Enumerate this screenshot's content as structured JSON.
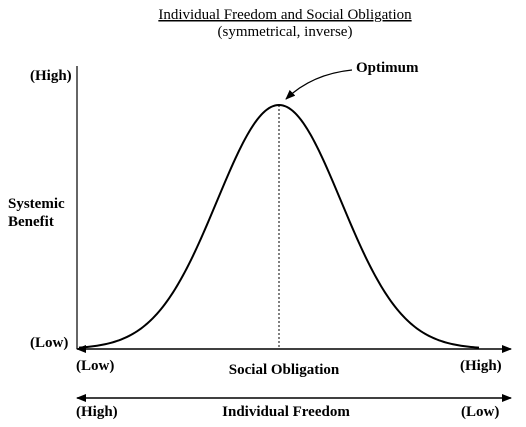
{
  "title": "Individual Freedom and Social Obligation",
  "subtitle": "(symmetrical, inverse)",
  "optimum_label": "Optimum",
  "y_axis": {
    "label_line1": "Systemic",
    "label_line2": "Benefit",
    "high": "(High)",
    "low": "(Low)"
  },
  "x_axis_obligation": {
    "label": "Social Obligation",
    "left": "(Low)",
    "right": "(High)"
  },
  "x_axis_freedom": {
    "label": "Individual Freedom",
    "left": "(High)",
    "right": "(Low)"
  },
  "chart_data": {
    "type": "line",
    "shape": "bell curve",
    "peak_position": "center",
    "peak_marker": "dotted vertical line"
  }
}
